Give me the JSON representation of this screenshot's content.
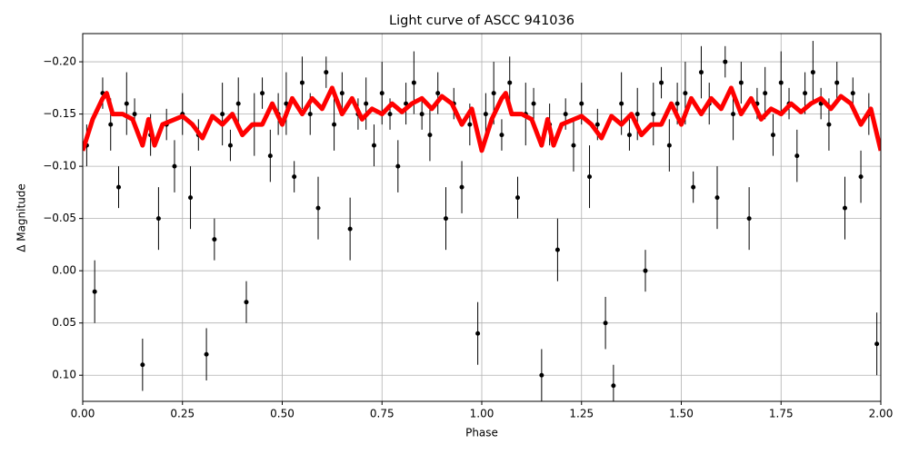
{
  "chart_data": {
    "type": "scatter",
    "title": "Light curve of ASCC 941036",
    "xlabel": "Phase",
    "ylabel": "Δ Magnitude",
    "xlim": [
      0,
      2
    ],
    "ylim": [
      -0.227,
      0.125
    ],
    "invert_y": true,
    "grid": true,
    "xticks": [
      {
        "value": 0,
        "label": "0.00"
      },
      {
        "value": 0.25,
        "label": "0.25"
      },
      {
        "value": 0.5,
        "label": "0.50"
      },
      {
        "value": 0.75,
        "label": "0.75"
      },
      {
        "value": 1,
        "label": "1.00"
      },
      {
        "value": 1.25,
        "label": "1.25"
      },
      {
        "value": 1.5,
        "label": "1.50"
      },
      {
        "value": 1.75,
        "label": "1.75"
      },
      {
        "value": 2,
        "label": "2.00"
      }
    ],
    "yticks": [
      {
        "value": -0.2,
        "label": "−0.20"
      },
      {
        "value": -0.15,
        "label": "−0.15"
      },
      {
        "value": -0.1,
        "label": "−0.10"
      },
      {
        "value": -0.05,
        "label": "−0.05"
      },
      {
        "value": 0,
        "label": "0.00"
      },
      {
        "value": 0.05,
        "label": "0.05"
      },
      {
        "value": 0.1,
        "label": "0.10"
      }
    ],
    "points": {
      "color": "#000000",
      "x": [
        0.01,
        0.03,
        0.05,
        0.07,
        0.09,
        0.11,
        0.13,
        0.15,
        0.17,
        0.19,
        0.21,
        0.23,
        0.25,
        0.27,
        0.29,
        0.31,
        0.33,
        0.35,
        0.37,
        0.39,
        0.41,
        0.43,
        0.45,
        0.47,
        0.49,
        0.51,
        0.53,
        0.55,
        0.57,
        0.59,
        0.61,
        0.63,
        0.65,
        0.67,
        0.69,
        0.71,
        0.73,
        0.75,
        0.77,
        0.79,
        0.81,
        0.83,
        0.85,
        0.87,
        0.89,
        0.91,
        0.93,
        0.95,
        0.97,
        0.99,
        1.01,
        1.03,
        1.05,
        1.07,
        1.09,
        1.11,
        1.13,
        1.15,
        1.17,
        1.19,
        1.21,
        1.23,
        1.25,
        1.27,
        1.29,
        1.31,
        1.33,
        1.35,
        1.37,
        1.39,
        1.41,
        1.43,
        1.45,
        1.47,
        1.49,
        1.51,
        1.53,
        1.55,
        1.57,
        1.59,
        1.61,
        1.63,
        1.65,
        1.67,
        1.69,
        1.71,
        1.73,
        1.75,
        1.77,
        1.79,
        1.81,
        1.83,
        1.85,
        1.87,
        1.89,
        1.91,
        1.93,
        1.95,
        1.97,
        1.99
      ],
      "y": [
        -0.12,
        0.02,
        -0.17,
        -0.14,
        -0.08,
        -0.16,
        -0.15,
        0.09,
        -0.13,
        -0.05,
        -0.14,
        -0.1,
        -0.15,
        -0.07,
        -0.13,
        0.08,
        -0.03,
        -0.15,
        -0.12,
        -0.16,
        0.03,
        -0.14,
        -0.17,
        -0.11,
        -0.15,
        -0.16,
        -0.09,
        -0.18,
        -0.15,
        -0.06,
        -0.19,
        -0.14,
        -0.17,
        -0.04,
        -0.15,
        -0.16,
        -0.12,
        -0.17,
        -0.15,
        -0.1,
        -0.16,
        -0.18,
        -0.15,
        -0.13,
        -0.17,
        -0.05,
        -0.16,
        -0.08,
        -0.14,
        0.06,
        -0.15,
        -0.17,
        -0.13,
        -0.18,
        -0.07,
        -0.15,
        -0.16,
        0.1,
        -0.14,
        -0.02,
        -0.15,
        -0.12,
        -0.16,
        -0.09,
        -0.14,
        0.05,
        0.11,
        -0.16,
        -0.13,
        -0.15,
        0.0,
        -0.15,
        -0.18,
        -0.12,
        -0.16,
        -0.17,
        -0.08,
        -0.19,
        -0.16,
        -0.07,
        -0.2,
        -0.15,
        -0.18,
        -0.05,
        -0.16,
        -0.17,
        -0.13,
        -0.18,
        -0.16,
        -0.11,
        -0.17,
        -0.19,
        -0.16,
        -0.14,
        -0.18,
        -0.06,
        -0.17,
        -0.09,
        -0.15,
        0.07
      ],
      "err": [
        0.02,
        0.03,
        0.015,
        0.025,
        0.02,
        0.03,
        0.015,
        0.025,
        0.02,
        0.03,
        0.015,
        0.025,
        0.02,
        0.03,
        0.015,
        0.025,
        0.02,
        0.03,
        0.015,
        0.025,
        0.02,
        0.03,
        0.015,
        0.025,
        0.02,
        0.03,
        0.015,
        0.025,
        0.02,
        0.03,
        0.015,
        0.025,
        0.02,
        0.03,
        0.015,
        0.025,
        0.02,
        0.03,
        0.015,
        0.025,
        0.02,
        0.03,
        0.015,
        0.025,
        0.02,
        0.03,
        0.015,
        0.025,
        0.02,
        0.03,
        0.02,
        0.03,
        0.015,
        0.025,
        0.02,
        0.03,
        0.015,
        0.025,
        0.02,
        0.03,
        0.015,
        0.025,
        0.02,
        0.03,
        0.015,
        0.025,
        0.02,
        0.03,
        0.015,
        0.025,
        0.02,
        0.03,
        0.015,
        0.025,
        0.02,
        0.03,
        0.015,
        0.025,
        0.02,
        0.03,
        0.015,
        0.025,
        0.02,
        0.03,
        0.015,
        0.025,
        0.02,
        0.03,
        0.015,
        0.025,
        0.02,
        0.03,
        0.015,
        0.025,
        0.02,
        0.03,
        0.015,
        0.025,
        0.02,
        0.03
      ]
    },
    "line": {
      "color": "#ff0000",
      "x": [
        0,
        0.025,
        0.05,
        0.06,
        0.075,
        0.1,
        0.125,
        0.15,
        0.165,
        0.18,
        0.2,
        0.25,
        0.275,
        0.3,
        0.325,
        0.35,
        0.375,
        0.4,
        0.425,
        0.45,
        0.475,
        0.5,
        0.525,
        0.55,
        0.575,
        0.6,
        0.625,
        0.65,
        0.675,
        0.7,
        0.725,
        0.75,
        0.775,
        0.8,
        0.825,
        0.85,
        0.875,
        0.9,
        0.925,
        0.95,
        0.975,
        1,
        1.025,
        1.05,
        1.06,
        1.075,
        1.1,
        1.125,
        1.15,
        1.165,
        1.18,
        1.2,
        1.25,
        1.275,
        1.3,
        1.325,
        1.35,
        1.375,
        1.4,
        1.425,
        1.45,
        1.475,
        1.5,
        1.525,
        1.55,
        1.575,
        1.6,
        1.625,
        1.65,
        1.675,
        1.7,
        1.725,
        1.75,
        1.775,
        1.8,
        1.825,
        1.85,
        1.875,
        1.9,
        1.925,
        1.95,
        1.975,
        2
      ],
      "y": [
        -0.115,
        -0.145,
        -0.165,
        -0.17,
        -0.15,
        -0.15,
        -0.145,
        -0.12,
        -0.145,
        -0.12,
        -0.14,
        -0.148,
        -0.14,
        -0.127,
        -0.148,
        -0.14,
        -0.15,
        -0.13,
        -0.14,
        -0.14,
        -0.16,
        -0.14,
        -0.165,
        -0.15,
        -0.165,
        -0.155,
        -0.175,
        -0.15,
        -0.165,
        -0.145,
        -0.155,
        -0.15,
        -0.16,
        -0.152,
        -0.16,
        -0.165,
        -0.155,
        -0.167,
        -0.16,
        -0.14,
        -0.155,
        -0.115,
        -0.145,
        -0.165,
        -0.17,
        -0.15,
        -0.15,
        -0.145,
        -0.12,
        -0.145,
        -0.12,
        -0.14,
        -0.148,
        -0.14,
        -0.127,
        -0.148,
        -0.14,
        -0.15,
        -0.13,
        -0.14,
        -0.14,
        -0.16,
        -0.14,
        -0.165,
        -0.15,
        -0.165,
        -0.155,
        -0.175,
        -0.15,
        -0.165,
        -0.145,
        -0.155,
        -0.15,
        -0.16,
        -0.152,
        -0.16,
        -0.165,
        -0.155,
        -0.167,
        -0.16,
        -0.14,
        -0.155,
        -0.115
      ]
    }
  }
}
